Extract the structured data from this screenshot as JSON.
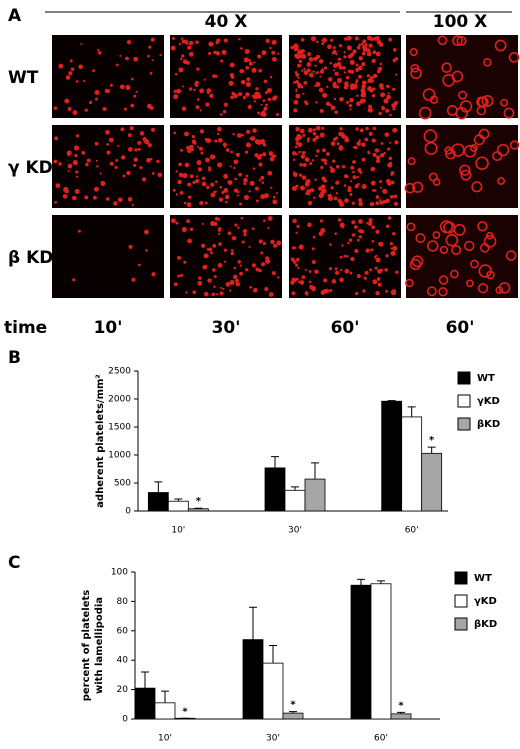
{
  "panel_a": {
    "label": "A",
    "magnifications": [
      "40 X",
      "100 X"
    ],
    "rows": [
      "WT",
      "γ KD",
      "β KD"
    ],
    "time_label": "time",
    "times": [
      "10'",
      "30'",
      "60'",
      "60'"
    ]
  },
  "chart_data": [
    {
      "type": "bar",
      "panel": "B",
      "y_label": [
        "adherent platelets/mm²"
      ],
      "categories": [
        "10'",
        "30'",
        "60'"
      ],
      "series": [
        {
          "name": "WT",
          "color": "#000000",
          "values": [
            330,
            770,
            1960
          ],
          "errors": [
            190,
            200,
            10
          ]
        },
        {
          "name": "γKD",
          "color": "#ffffff",
          "values": [
            175,
            370,
            1680
          ],
          "errors": [
            40,
            60,
            180
          ]
        },
        {
          "name": "βKD",
          "color": "#a6a6a6",
          "values": [
            40,
            570,
            1030
          ],
          "errors": [
            10,
            290,
            110
          ],
          "annotations": [
            "*",
            null,
            "*"
          ]
        }
      ],
      "ylim": [
        0,
        2500
      ],
      "yticks": [
        0,
        500,
        1000,
        1500,
        2000,
        2500
      ]
    },
    {
      "type": "bar",
      "panel": "C",
      "y_label": [
        "percent of platelets",
        "with lamellipodia"
      ],
      "categories": [
        "10'",
        "30'",
        "60'"
      ],
      "series": [
        {
          "name": "WT",
          "color": "#000000",
          "values": [
            21,
            54,
            91
          ],
          "errors": [
            11,
            22,
            4
          ]
        },
        {
          "name": "γKD",
          "color": "#ffffff",
          "values": [
            11,
            38,
            92
          ],
          "errors": [
            8,
            12,
            2
          ]
        },
        {
          "name": "βKD",
          "color": "#a6a6a6",
          "values": [
            0.5,
            4,
            3.5
          ],
          "errors": [
            0,
            1,
            1
          ],
          "annotations": [
            "*",
            "*",
            "*"
          ]
        }
      ],
      "ylim": [
        0,
        100
      ],
      "yticks": [
        0,
        20,
        40,
        60,
        80,
        100
      ]
    }
  ]
}
